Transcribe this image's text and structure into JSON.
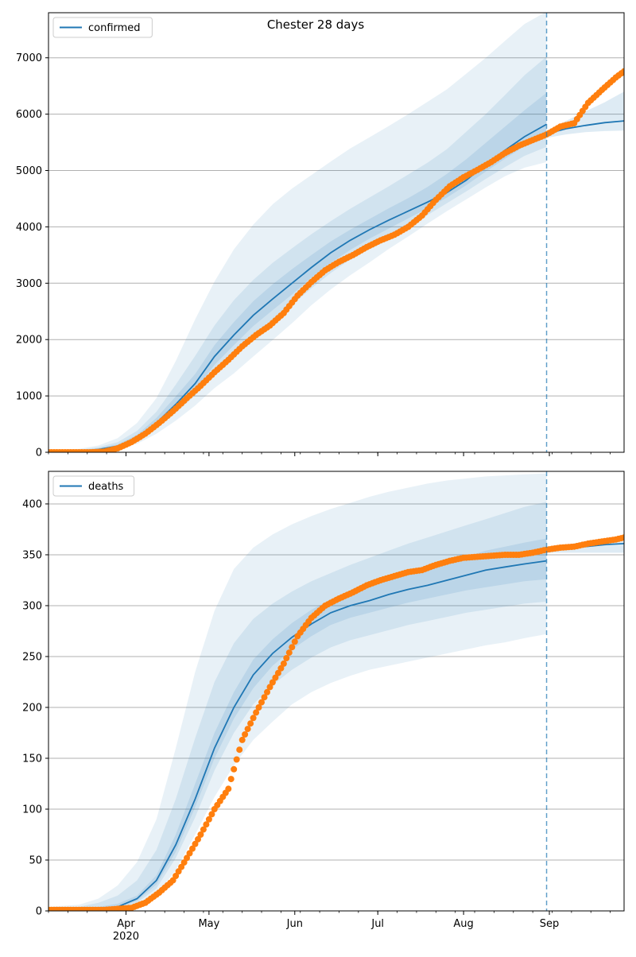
{
  "figure_title": "Chester 28 days",
  "colors": {
    "model_line": "#1f77b4",
    "band": "#1f77b4",
    "observed": "#ff7f0e",
    "grid": "#b0b0b0",
    "forecast_marker": "#1f77b4"
  },
  "x_axis": {
    "start_date": "2020-03-04",
    "end_date": "2020-09-28",
    "month_ticks": [
      {
        "date": "2020-04-01",
        "label": "Apr",
        "sublabel": "2020"
      },
      {
        "date": "2020-05-01",
        "label": "May",
        "sublabel": ""
      },
      {
        "date": "2020-06-01",
        "label": "Jun",
        "sublabel": ""
      },
      {
        "date": "2020-07-01",
        "label": "Jul",
        "sublabel": ""
      },
      {
        "date": "2020-08-01",
        "label": "Aug",
        "sublabel": ""
      },
      {
        "date": "2020-09-01",
        "label": "Sep",
        "sublabel": ""
      }
    ],
    "forecast_start": "2020-08-31"
  },
  "chart_data": [
    {
      "type": "line",
      "title": "Chester 28 days",
      "legend": {
        "label": "confirmed",
        "placement": "top-left"
      },
      "ylim": [
        0,
        7800
      ],
      "yticks": [
        0,
        1000,
        2000,
        3000,
        4000,
        5000,
        6000,
        7000
      ],
      "grid": "horizontal",
      "model_median": {
        "dates": [
          "2020-03-04",
          "2020-03-15",
          "2020-03-22",
          "2020-03-29",
          "2020-04-05",
          "2020-04-12",
          "2020-04-19",
          "2020-04-26",
          "2020-05-03",
          "2020-05-10",
          "2020-05-17",
          "2020-05-24",
          "2020-05-31",
          "2020-06-07",
          "2020-06-14",
          "2020-06-21",
          "2020-06-28",
          "2020-07-05",
          "2020-07-12",
          "2020-07-19",
          "2020-07-26",
          "2020-08-02",
          "2020-08-09",
          "2020-08-16",
          "2020-08-23",
          "2020-08-31"
        ],
        "values": [
          10,
          20,
          50,
          110,
          260,
          520,
          850,
          1220,
          1700,
          2080,
          2430,
          2720,
          3000,
          3280,
          3540,
          3760,
          3950,
          4120,
          4280,
          4440,
          4610,
          4830,
          5110,
          5360,
          5600,
          5820
        ]
      },
      "bands": [
        {
          "level": "outer",
          "lower": [
            0,
            10,
            30,
            70,
            150,
            330,
            560,
            830,
            1140,
            1400,
            1700,
            1990,
            2290,
            2610,
            2890,
            3140,
            3370,
            3610,
            3830,
            4060,
            4280,
            4490,
            4700,
            4900,
            5050,
            5150
          ],
          "upper": [
            40,
            60,
            120,
            250,
            520,
            960,
            1620,
            2360,
            3030,
            3600,
            4040,
            4400,
            4680,
            4920,
            5160,
            5390,
            5590,
            5790,
            6000,
            6220,
            6440,
            6720,
            7000,
            7300,
            7600,
            7820
          ]
        },
        {
          "level": "middle",
          "lower": [
            5,
            15,
            40,
            90,
            200,
            420,
            700,
            1010,
            1400,
            1720,
            2040,
            2320,
            2610,
            2910,
            3180,
            3420,
            3630,
            3830,
            4020,
            4210,
            4420,
            4630,
            4850,
            5060,
            5260,
            5420
          ],
          "upper": [
            25,
            40,
            90,
            180,
            380,
            720,
            1200,
            1710,
            2250,
            2700,
            3060,
            3360,
            3620,
            3870,
            4100,
            4320,
            4520,
            4720,
            4930,
            5140,
            5380,
            5690,
            6000,
            6340,
            6690,
            7020
          ]
        },
        {
          "level": "inner",
          "lower": [
            8,
            18,
            45,
            100,
            230,
            470,
            770,
            1110,
            1550,
            1900,
            2240,
            2520,
            2800,
            3100,
            3360,
            3590,
            3790,
            3970,
            4150,
            4330,
            4520,
            4740,
            4980,
            5210,
            5430,
            5620
          ],
          "upper": [
            15,
            30,
            70,
            140,
            310,
            610,
            990,
            1390,
            1900,
            2310,
            2680,
            2980,
            3250,
            3500,
            3740,
            3950,
            4140,
            4330,
            4510,
            4710,
            4940,
            5200,
            5490,
            5780,
            6070,
            6380
          ]
        }
      ],
      "forecast": {
        "dates": [
          "2020-08-31",
          "2020-09-07",
          "2020-09-14",
          "2020-09-21",
          "2020-09-28"
        ],
        "values": [
          5650,
          5740,
          5800,
          5850,
          5880
        ],
        "lower": [
          5580,
          5640,
          5680,
          5700,
          5710
        ],
        "upper": [
          5700,
          5880,
          6050,
          6210,
          6400
        ]
      },
      "observed": {
        "dates": [
          "2020-03-04",
          "2020-03-09",
          "2020-03-14",
          "2020-03-19",
          "2020-03-24",
          "2020-03-29",
          "2020-04-03",
          "2020-04-08",
          "2020-04-13",
          "2020-04-18",
          "2020-04-23",
          "2020-04-28",
          "2020-05-03",
          "2020-05-08",
          "2020-05-13",
          "2020-05-18",
          "2020-05-23",
          "2020-05-28",
          "2020-06-02",
          "2020-06-07",
          "2020-06-12",
          "2020-06-17",
          "2020-06-22",
          "2020-06-27",
          "2020-07-02",
          "2020-07-07",
          "2020-07-12",
          "2020-07-17",
          "2020-07-22",
          "2020-07-27",
          "2020-08-01",
          "2020-08-06",
          "2020-08-11",
          "2020-08-16",
          "2020-08-21",
          "2020-08-26",
          "2020-08-31",
          "2020-09-05",
          "2020-09-10",
          "2020-09-15",
          "2020-09-20",
          "2020-09-25",
          "2020-09-28"
        ],
        "values": [
          0,
          0,
          0,
          0,
          10,
          70,
          180,
          330,
          520,
          730,
          960,
          1180,
          1420,
          1640,
          1880,
          2080,
          2250,
          2470,
          2780,
          3020,
          3230,
          3380,
          3500,
          3640,
          3760,
          3860,
          4000,
          4200,
          4480,
          4720,
          4880,
          5010,
          5150,
          5310,
          5440,
          5540,
          5640,
          5780,
          5840,
          6200,
          6430,
          6650,
          6760
        ]
      }
    },
    {
      "type": "line",
      "title": "",
      "legend": {
        "label": "deaths",
        "placement": "top-left"
      },
      "ylim": [
        0,
        432
      ],
      "yticks": [
        0,
        50,
        100,
        150,
        200,
        250,
        300,
        350,
        400
      ],
      "grid": "horizontal",
      "model_median": {
        "dates": [
          "2020-03-04",
          "2020-03-15",
          "2020-03-22",
          "2020-03-29",
          "2020-04-05",
          "2020-04-12",
          "2020-04-19",
          "2020-04-26",
          "2020-05-03",
          "2020-05-10",
          "2020-05-17",
          "2020-05-24",
          "2020-05-31",
          "2020-06-07",
          "2020-06-14",
          "2020-06-21",
          "2020-06-28",
          "2020-07-05",
          "2020-07-12",
          "2020-07-19",
          "2020-07-26",
          "2020-08-02",
          "2020-08-09",
          "2020-08-16",
          "2020-08-23",
          "2020-08-31"
        ],
        "values": [
          0,
          1,
          2,
          4,
          12,
          30,
          65,
          110,
          160,
          200,
          232,
          253,
          269,
          282,
          293,
          300,
          305,
          311,
          316,
          320,
          325,
          330,
          335,
          338,
          341,
          344
        ]
      },
      "bands": [
        {
          "level": "outer",
          "lower": [
            0,
            0,
            0,
            1,
            5,
            16,
            40,
            75,
            112,
            143,
            168,
            186,
            203,
            215,
            224,
            231,
            237,
            241,
            245,
            249,
            253,
            257,
            261,
            264,
            268,
            272
          ],
          "upper": [
            4,
            6,
            12,
            25,
            48,
            90,
            160,
            235,
            295,
            336,
            357,
            370,
            380,
            388,
            395,
            401,
            407,
            412,
            416,
            420,
            423,
            425,
            427,
            428,
            429,
            430
          ]
        },
        {
          "level": "middle",
          "lower": [
            0,
            0,
            1,
            2,
            8,
            22,
            52,
            92,
            138,
            175,
            203,
            222,
            237,
            249,
            259,
            266,
            271,
            276,
            281,
            285,
            289,
            293,
            296,
            299,
            302,
            304
          ],
          "upper": [
            2,
            4,
            8,
            15,
            30,
            60,
            110,
            170,
            225,
            263,
            287,
            302,
            314,
            324,
            332,
            340,
            347,
            354,
            361,
            367,
            373,
            379,
            385,
            391,
            397,
            402
          ]
        },
        {
          "level": "inner",
          "lower": [
            0,
            0,
            1,
            3,
            10,
            26,
            58,
            102,
            150,
            189,
            219,
            241,
            257,
            270,
            281,
            288,
            293,
            298,
            303,
            307,
            311,
            315,
            318,
            321,
            324,
            326
          ],
          "upper": [
            1,
            2,
            4,
            7,
            15,
            35,
            75,
            125,
            175,
            215,
            247,
            267,
            283,
            296,
            306,
            314,
            320,
            326,
            332,
            337,
            342,
            348,
            354,
            358,
            362,
            366
          ]
        }
      ],
      "forecast": {
        "dates": [
          "2020-08-31",
          "2020-09-07",
          "2020-09-14",
          "2020-09-21",
          "2020-09-28"
        ],
        "values": [
          355,
          357,
          358,
          360,
          361
        ],
        "lower": [
          352,
          352,
          352,
          352,
          352
        ],
        "upper": [
          357,
          360,
          363,
          366,
          369
        ]
      },
      "observed": {
        "dates": [
          "2020-03-04",
          "2020-03-09",
          "2020-03-14",
          "2020-03-19",
          "2020-03-24",
          "2020-03-29",
          "2020-04-03",
          "2020-04-08",
          "2020-04-13",
          "2020-04-18",
          "2020-04-23",
          "2020-04-28",
          "2020-05-03",
          "2020-05-08",
          "2020-05-13",
          "2020-05-18",
          "2020-05-23",
          "2020-05-28",
          "2020-06-02",
          "2020-06-07",
          "2020-06-12",
          "2020-06-17",
          "2020-06-22",
          "2020-06-27",
          "2020-07-02",
          "2020-07-07",
          "2020-07-12",
          "2020-07-17",
          "2020-07-22",
          "2020-07-27",
          "2020-08-01",
          "2020-08-06",
          "2020-08-11",
          "2020-08-16",
          "2020-08-21",
          "2020-08-26",
          "2020-08-31",
          "2020-09-05",
          "2020-09-10",
          "2020-09-15",
          "2020-09-20",
          "2020-09-25",
          "2020-09-28"
        ],
        "values": [
          1,
          1,
          1,
          1,
          1,
          2,
          3,
          8,
          18,
          30,
          52,
          75,
          100,
          120,
          168,
          195,
          220,
          243,
          270,
          288,
          300,
          307,
          313,
          320,
          325,
          329,
          333,
          335,
          340,
          344,
          347,
          348,
          349,
          350,
          350,
          352,
          355,
          357,
          358,
          361,
          363,
          365,
          367
        ]
      }
    }
  ]
}
